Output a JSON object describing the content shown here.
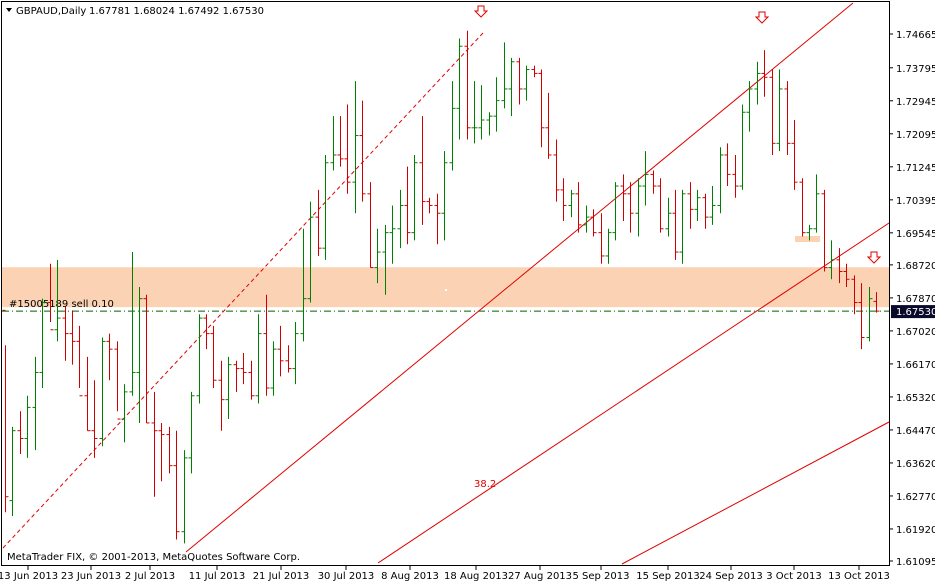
{
  "header": {
    "symbol": "GBPAUD,Daily",
    "ohlc": "1.67781 1.68024 1.67492 1.67530"
  },
  "order_label": "#15005189 sell 0.10",
  "fib_label": "38.2",
  "copyright": "MetaTrader FIX, © 2001-2013, MetaQuotes Software Corp.",
  "price_marker": "1.67530",
  "colors": {
    "bull": "#008000",
    "bear": "#d00000",
    "zone": "#fbd3b4",
    "order_line": "#006400",
    "trend": "#e00000",
    "marker_bg": "#0a0a2a"
  },
  "chart_data": {
    "type": "bar",
    "symbol": "GBPAUD",
    "timeframe": "Daily",
    "y_ticks": [
      "1.74665",
      "1.73795",
      "1.72945",
      "1.72095",
      "1.71245",
      "1.70395",
      "1.69545",
      "1.68720",
      "1.67870",
      "1.67020",
      "1.66170",
      "1.65320",
      "1.64470",
      "1.63620",
      "1.62770",
      "1.61920",
      "1.61095"
    ],
    "x_ticks": [
      "13 Jun 2013",
      "23 Jun 2013",
      "2 Jul 2013",
      "11 Jul 2013",
      "21 Jul 2013",
      "30 Jul 2013",
      "8 Aug 2013",
      "18 Aug 2013",
      "27 Aug 2013",
      "5 Sep 2013",
      "15 Sep 2013",
      "24 Sep 2013",
      "3 Oct 2013",
      "13 Oct 2013"
    ],
    "ylim": [
      1.61095,
      1.74665
    ],
    "current_price": 1.6753,
    "order": {
      "label": "#15005189 sell 0.10",
      "price": 1.6753
    },
    "zone": {
      "from": 1.6763,
      "to": 1.6866
    },
    "bars": [
      [
        1.6755,
        1.6665,
        1.6235,
        1.6275
      ],
      [
        1.6265,
        1.6455,
        1.6225,
        1.6445
      ],
      [
        1.6445,
        1.6495,
        1.6385,
        1.6425
      ],
      [
        1.6425,
        1.6535,
        1.6375,
        1.6505
      ],
      [
        1.6505,
        1.6635,
        1.6395,
        1.6595
      ],
      [
        1.6595,
        1.6785,
        1.6555,
        1.6775
      ],
      [
        1.6775,
        1.6875,
        1.6725,
        1.6705
      ],
      [
        1.6705,
        1.6885,
        1.6675,
        1.6735
      ],
      [
        1.6735,
        1.6765,
        1.6625,
        1.6695
      ],
      [
        1.6695,
        1.6755,
        1.6615,
        1.6675
      ],
      [
        1.6675,
        1.6715,
        1.6555,
        1.6535
      ],
      [
        1.6535,
        1.6635,
        1.6445,
        1.6445
      ],
      [
        1.6445,
        1.6575,
        1.6375,
        1.6425
      ],
      [
        1.6425,
        1.6685,
        1.6405,
        1.6675
      ],
      [
        1.6675,
        1.6695,
        1.6575,
        1.6655
      ],
      [
        1.6655,
        1.6675,
        1.6495,
        1.6475
      ],
      [
        1.6475,
        1.6565,
        1.6415,
        1.6545
      ],
      [
        1.6545,
        1.6905,
        1.6535,
        1.6595
      ],
      [
        1.6595,
        1.6815,
        1.6465,
        1.6785
      ],
      [
        1.6785,
        1.6795,
        1.6465,
        1.6465
      ],
      [
        1.6465,
        1.6545,
        1.6275,
        1.6445
      ],
      [
        1.6445,
        1.6465,
        1.6315,
        1.6435
      ],
      [
        1.6435,
        1.6455,
        1.6335,
        1.6355
      ],
      [
        1.6355,
        1.6445,
        1.6165,
        1.6185
      ],
      [
        1.6185,
        1.6395,
        1.6155,
        1.6375
      ],
      [
        1.6375,
        1.6545,
        1.6335,
        1.6535
      ],
      [
        1.6535,
        1.6745,
        1.6515,
        1.6735
      ],
      [
        1.6735,
        1.6745,
        1.6655,
        1.6695
      ],
      [
        1.6695,
        1.6715,
        1.6555,
        1.6575
      ],
      [
        1.6575,
        1.6625,
        1.6445,
        1.6525
      ],
      [
        1.6525,
        1.6635,
        1.6475,
        1.6615
      ],
      [
        1.6615,
        1.6625,
        1.6545,
        1.6605
      ],
      [
        1.6605,
        1.6645,
        1.6565,
        1.6595
      ],
      [
        1.6595,
        1.6625,
        1.6525,
        1.6535
      ],
      [
        1.6535,
        1.6745,
        1.6515,
        1.6695
      ],
      [
        1.6695,
        1.6795,
        1.6535,
        1.6555
      ],
      [
        1.6555,
        1.6675,
        1.6535,
        1.6655
      ],
      [
        1.6655,
        1.6715,
        1.6585,
        1.6625
      ],
      [
        1.6625,
        1.6665,
        1.6595,
        1.6605
      ],
      [
        1.6605,
        1.6725,
        1.6565,
        1.6695
      ],
      [
        1.6695,
        1.6965,
        1.6675,
        1.6785
      ],
      [
        1.6785,
        1.7035,
        1.6775,
        1.6995
      ],
      [
        1.6995,
        1.7065,
        1.6895,
        1.6915
      ],
      [
        1.6915,
        1.7155,
        1.6885,
        1.7135
      ],
      [
        1.7135,
        1.7255,
        1.7115,
        1.7155
      ],
      [
        1.7155,
        1.7255,
        1.7125,
        1.7145
      ],
      [
        1.7145,
        1.7285,
        1.7055,
        1.7085
      ],
      [
        1.7085,
        1.7345,
        1.7005,
        1.7205
      ],
      [
        1.7205,
        1.7295,
        1.7035,
        1.7055
      ],
      [
        1.7055,
        1.7085,
        1.6865,
        1.6865
      ],
      [
        1.6865,
        1.6965,
        1.6825,
        1.6905
      ],
      [
        1.6905,
        1.6975,
        1.6795,
        1.6955
      ],
      [
        1.6955,
        1.7025,
        1.6875,
        1.6965
      ],
      [
        1.6965,
        1.7065,
        1.6915,
        1.7025
      ],
      [
        1.7025,
        1.7125,
        1.6925,
        1.6955
      ],
      [
        1.6955,
        1.7155,
        1.6935,
        1.7135
      ],
      [
        1.7135,
        1.7255,
        1.6975,
        1.7035
      ],
      [
        1.7035,
        1.7045,
        1.7005,
        1.7025
      ],
      [
        1.7025,
        1.7055,
        1.6925,
        1.7005
      ],
      [
        1.7005,
        1.7165,
        1.6935,
        1.7135
      ],
      [
        1.7135,
        1.7345,
        1.7115,
        1.7275
      ],
      [
        1.7275,
        1.7455,
        1.7195,
        1.7435
      ],
      [
        1.7435,
        1.7475,
        1.7195,
        1.7225
      ],
      [
        1.7225,
        1.7345,
        1.7185,
        1.7225
      ],
      [
        1.7225,
        1.7335,
        1.7195,
        1.7245
      ],
      [
        1.7245,
        1.7265,
        1.7205,
        1.7255
      ],
      [
        1.7255,
        1.7355,
        1.7215,
        1.7295
      ],
      [
        1.7295,
        1.7445,
        1.7275,
        1.7325
      ],
      [
        1.7325,
        1.7405,
        1.7255,
        1.7395
      ],
      [
        1.7395,
        1.7405,
        1.7285,
        1.7325
      ],
      [
        1.7325,
        1.7385,
        1.7295,
        1.7375
      ],
      [
        1.7375,
        1.7385,
        1.7355,
        1.7365
      ],
      [
        1.7365,
        1.7375,
        1.7175,
        1.7225
      ],
      [
        1.7225,
        1.7315,
        1.7145,
        1.7155
      ],
      [
        1.7155,
        1.7195,
        1.7035,
        1.7065
      ],
      [
        1.7065,
        1.7095,
        1.6985,
        1.7025
      ],
      [
        1.7025,
        1.7065,
        1.6995,
        1.7055
      ],
      [
        1.7055,
        1.7085,
        1.6955,
        1.6975
      ],
      [
        1.6975,
        1.7025,
        1.6955,
        1.6995
      ],
      [
        1.6995,
        1.7015,
        1.6945,
        1.6955
      ],
      [
        1.6955,
        1.7005,
        1.6875,
        1.6895
      ],
      [
        1.6895,
        1.6965,
        1.6875,
        1.6955
      ],
      [
        1.6955,
        1.7085,
        1.6935,
        1.7075
      ],
      [
        1.7075,
        1.7105,
        1.6985,
        1.7055
      ],
      [
        1.7055,
        1.7085,
        1.6955,
        1.7005
      ],
      [
        1.7005,
        1.7095,
        1.6945,
        1.7075
      ],
      [
        1.7075,
        1.7165,
        1.7025,
        1.7105
      ],
      [
        1.7105,
        1.7115,
        1.7055,
        1.7075
      ],
      [
        1.7075,
        1.7095,
        1.6955,
        1.6965
      ],
      [
        1.6965,
        1.7045,
        1.6945,
        1.7005
      ],
      [
        1.7005,
        1.7065,
        1.6885,
        1.6905
      ],
      [
        1.6905,
        1.7065,
        1.6875,
        1.7055
      ],
      [
        1.7055,
        1.7085,
        1.6965,
        1.7015
      ],
      [
        1.7015,
        1.7065,
        1.6985,
        1.7045
      ],
      [
        1.7045,
        1.7055,
        1.6965,
        1.6995
      ],
      [
        1.6995,
        1.7075,
        1.6975,
        1.7025
      ],
      [
        1.7025,
        1.7175,
        1.7005,
        1.7155
      ],
      [
        1.7155,
        1.7185,
        1.7075,
        1.7105
      ],
      [
        1.7105,
        1.7155,
        1.7045,
        1.7075
      ],
      [
        1.7075,
        1.7285,
        1.7065,
        1.7265
      ],
      [
        1.7265,
        1.7345,
        1.7215,
        1.7325
      ],
      [
        1.7325,
        1.7395,
        1.7285,
        1.7365
      ],
      [
        1.7365,
        1.7425,
        1.7305,
        1.7355
      ],
      [
        1.7355,
        1.7375,
        1.7155,
        1.7185
      ],
      [
        1.7185,
        1.7375,
        1.7165,
        1.7325
      ],
      [
        1.7325,
        1.7345,
        1.7155,
        1.7185
      ],
      [
        1.7185,
        1.7245,
        1.7065,
        1.7085
      ],
      [
        1.7085,
        1.7095,
        1.6945,
        1.6955
      ],
      [
        1.6955,
        1.6975,
        1.6935,
        1.6965
      ],
      [
        1.6965,
        1.7105,
        1.6955,
        1.7055
      ],
      [
        1.7055,
        1.7065,
        1.6855,
        1.6865
      ],
      [
        1.6865,
        1.6935,
        1.6835,
        1.6885
      ],
      [
        1.6885,
        1.6915,
        1.6825,
        1.6855
      ],
      [
        1.6855,
        1.6875,
        1.6815,
        1.6835
      ],
      [
        1.6835,
        1.6845,
        1.6745,
        1.6775
      ],
      [
        1.6775,
        1.6825,
        1.6655,
        1.6685
      ],
      [
        1.6685,
        1.6815,
        1.6675,
        1.6785
      ],
      [
        1.6778,
        1.6802,
        1.6749,
        1.6753
      ]
    ]
  }
}
